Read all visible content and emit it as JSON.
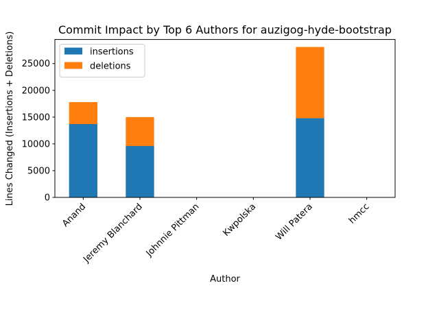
{
  "chart_data": {
    "type": "bar",
    "stacked": true,
    "title": "Commit Impact by Top 6 Authors for auzigog-hyde-bootstrap",
    "xlabel": "Author",
    "ylabel": "Lines Changed (Insertions + Deletions)",
    "categories": [
      "Anand",
      "Jeremy Blanchard",
      "Johnnie Pittman",
      "Kwpolska",
      "Will Patera",
      "hmcc"
    ],
    "series": [
      {
        "name": "insertions",
        "color": "#1f77b4",
        "values": [
          13700,
          9600,
          0,
          0,
          14800,
          0
        ]
      },
      {
        "name": "deletions",
        "color": "#ff7f0e",
        "values": [
          4100,
          5400,
          0,
          0,
          13300,
          0
        ]
      }
    ],
    "ylim": [
      0,
      29500
    ],
    "yticks": [
      0,
      5000,
      10000,
      15000,
      20000,
      25000
    ],
    "grid": false,
    "legend": "top-left"
  }
}
